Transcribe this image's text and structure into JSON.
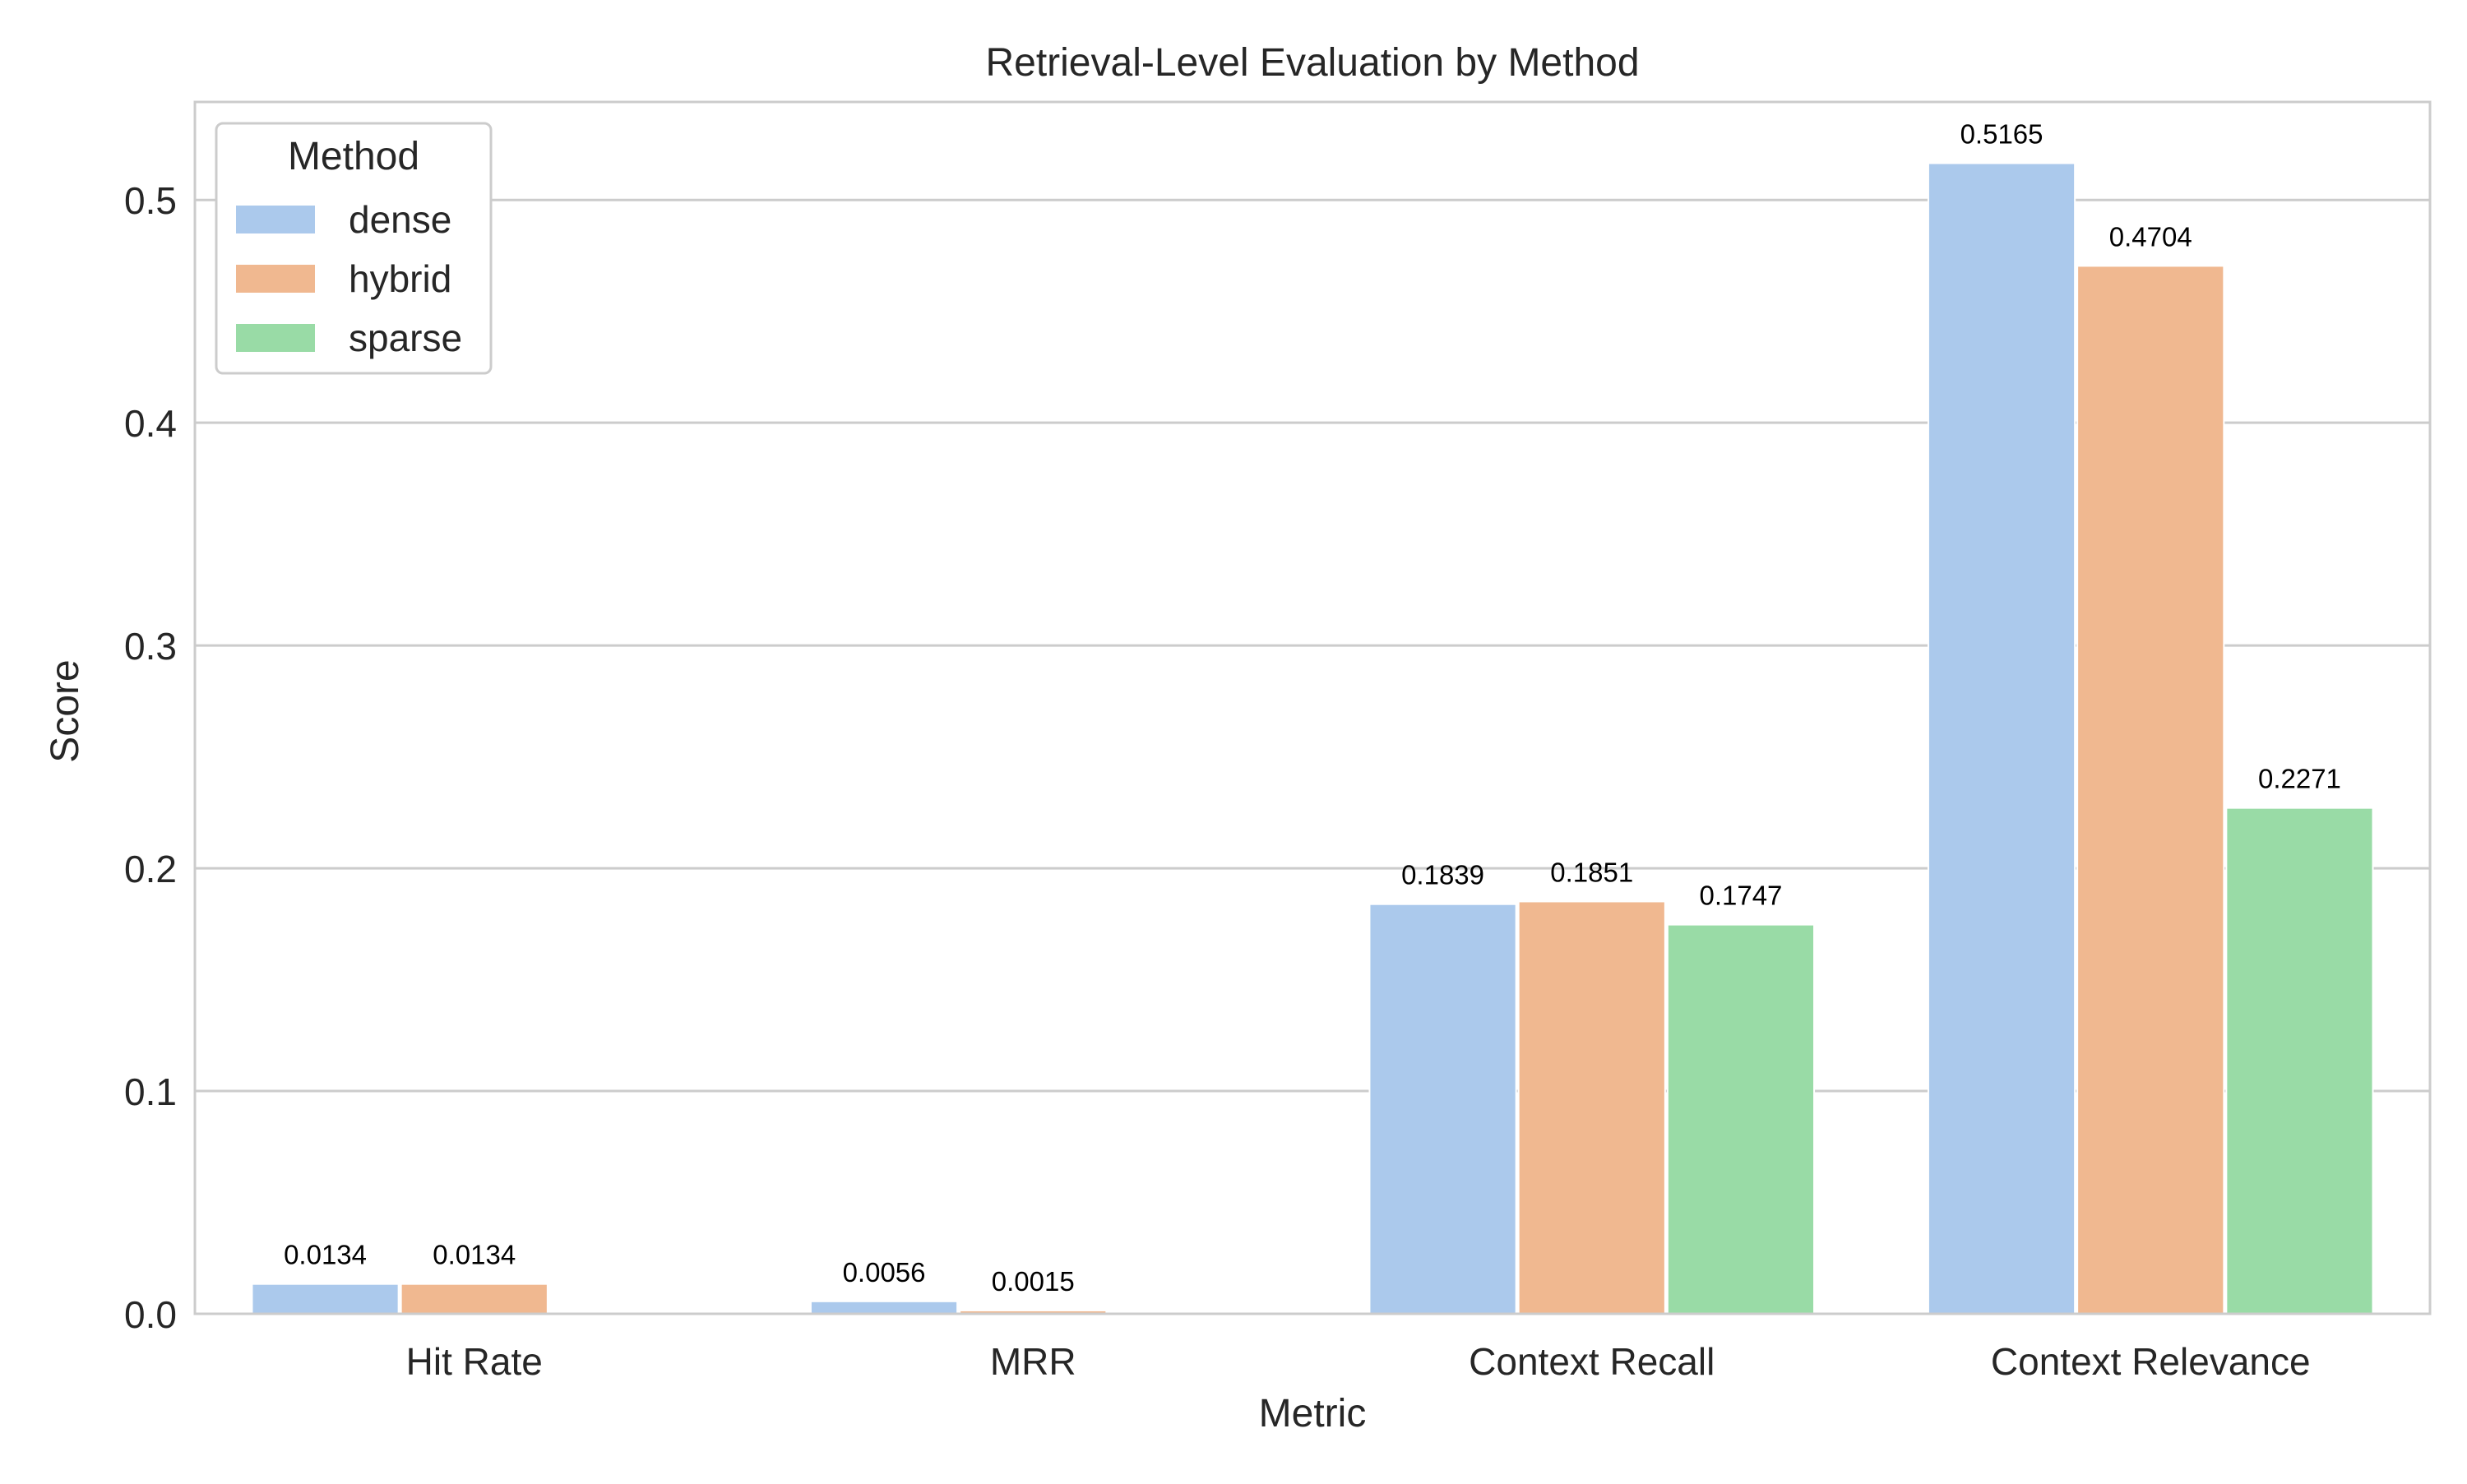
{
  "chart_data": {
    "type": "bar",
    "title": "Retrieval-Level Evaluation by Method",
    "xlabel": "Metric",
    "ylabel": "Score",
    "categories": [
      "Hit Rate",
      "MRR",
      "Context Recall",
      "Context Relevance"
    ],
    "series": [
      {
        "name": "dense",
        "color": "#abc9ec",
        "values": [
          0.0134,
          0.0056,
          0.1839,
          0.5165
        ]
      },
      {
        "name": "hybrid",
        "color": "#f0b890",
        "values": [
          0.0134,
          0.0015,
          0.1851,
          0.4704
        ]
      },
      {
        "name": "sparse",
        "color": "#99dba6",
        "values": [
          0.0,
          0.0,
          0.1747,
          0.2271
        ]
      }
    ],
    "value_labels": [
      [
        "0.0134",
        "0.0056",
        "0.1839",
        "0.5165"
      ],
      [
        "0.0134",
        "0.0015",
        "0.1851",
        "0.4704"
      ],
      [
        null,
        null,
        "0.1747",
        "0.2271"
      ]
    ],
    "ylim": [
      0,
      0.544
    ],
    "yticks": [
      0.0,
      0.1,
      0.2,
      0.3,
      0.4,
      0.5
    ],
    "ytick_labels": [
      "0.0",
      "0.1",
      "0.2",
      "0.3",
      "0.4",
      "0.5"
    ],
    "grid": true,
    "legend": {
      "title": "Method",
      "placement": "top-left"
    }
  }
}
